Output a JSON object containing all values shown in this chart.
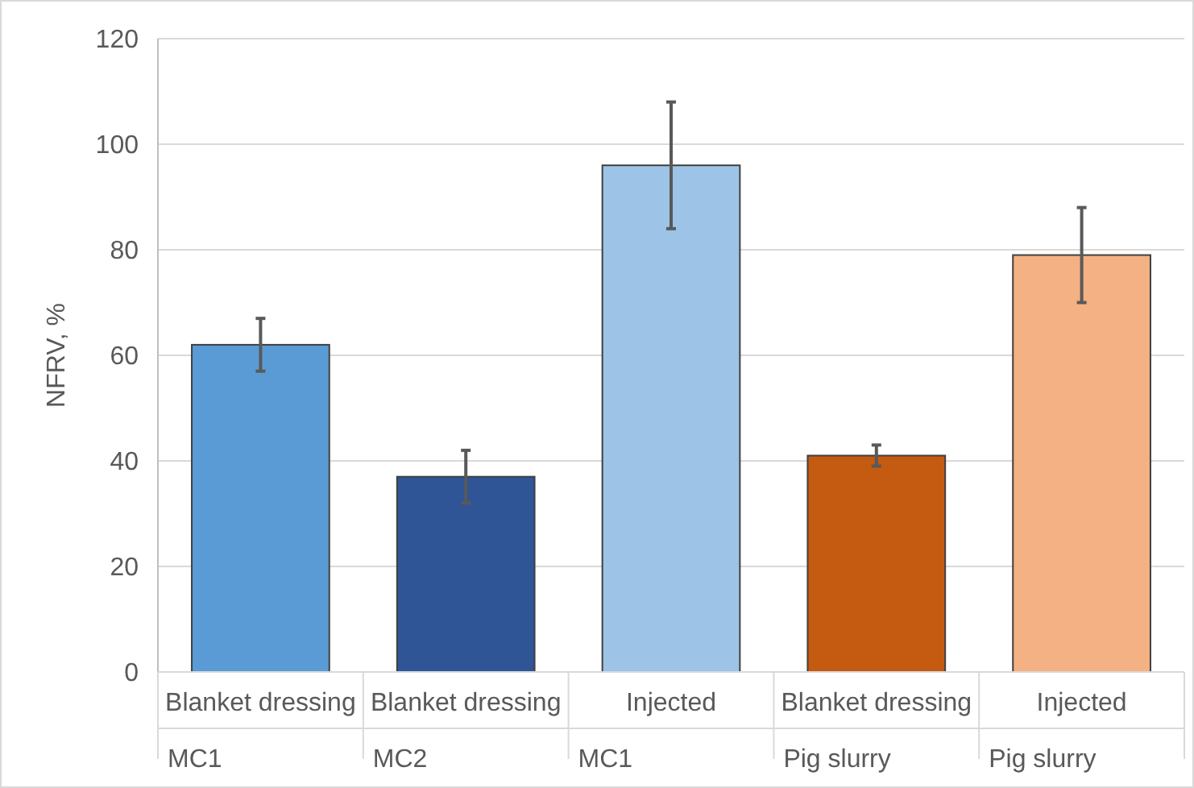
{
  "chart_data": {
    "type": "bar",
    "ylabel": "NFRV, %",
    "categories": [
      "Blanket dressing\nMC1",
      "Blanket dressing\nMC2",
      "Injected\nMC1",
      "Blanket dressing\nPig slurry",
      "Injected\nPig slurry"
    ],
    "values": [
      62,
      37,
      96,
      41,
      79
    ],
    "errors": [
      5,
      5,
      12,
      2,
      9
    ],
    "colors": [
      "#5b9bd5",
      "#2f5597",
      "#9dc3e6",
      "#c55a11",
      "#f4b183"
    ],
    "ylim": [
      0,
      120
    ],
    "yticks": [
      0,
      20,
      40,
      60,
      80,
      100,
      120
    ],
    "grid": "y"
  }
}
